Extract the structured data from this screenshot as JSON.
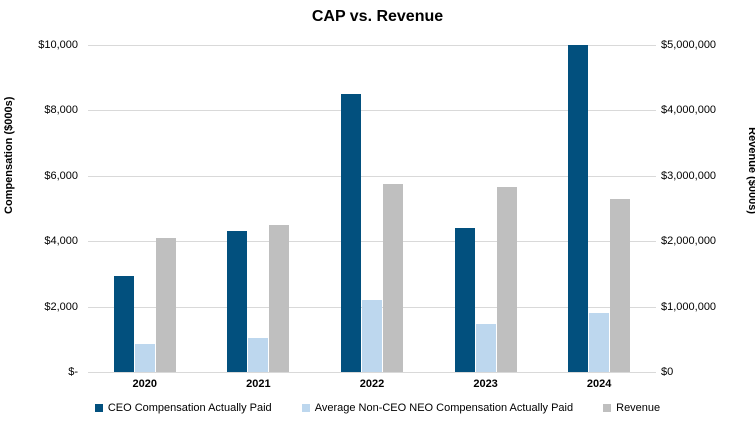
{
  "chart_data": {
    "type": "bar",
    "title": "CAP vs. Revenue",
    "categories": [
      "2020",
      "2021",
      "2022",
      "2023",
      "2024"
    ],
    "series": [
      {
        "name": "CEO Compensation Actually Paid",
        "axis": "left",
        "color": "#02507E",
        "values": [
          2950,
          4300,
          8500,
          4400,
          10000
        ]
      },
      {
        "name": "Average Non-CEO NEO Compensation Actually Paid",
        "axis": "left",
        "color": "#BDD7EE",
        "values": [
          850,
          1050,
          2200,
          1475,
          1800
        ]
      },
      {
        "name": "Revenue",
        "axis": "right",
        "color": "#BFBFBF",
        "values": [
          2050000,
          2250000,
          2875000,
          2825000,
          2650000
        ]
      }
    ],
    "left_axis": {
      "label": "Compensation ($000s)",
      "min": 0,
      "max": 10000,
      "ticks": [
        "$-",
        "$2,000",
        "$4,000",
        "$6,000",
        "$8,000",
        "$10,000"
      ]
    },
    "right_axis": {
      "label": "Revenue ($000s)",
      "min": 0,
      "max": 5000000,
      "ticks": [
        "$0",
        "$1,000,000",
        "$2,000,000",
        "$3,000,000",
        "$4,000,000",
        "$5,000,000"
      ]
    },
    "grid": true,
    "legend_position": "bottom",
    "gridline_color": "#D9D9D9"
  }
}
